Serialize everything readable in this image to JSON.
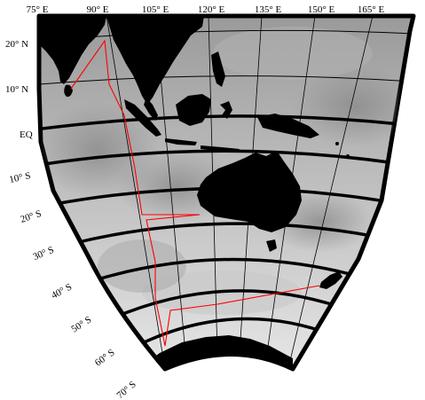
{
  "map": {
    "longitude_labels": [
      "75° E",
      "90° E",
      "105° E",
      "120° E",
      "135° E",
      "150° E",
      "165° E"
    ],
    "latitude_labels": [
      "20° N",
      "10° N",
      "EQ",
      "10° S",
      "20° S",
      "30° S",
      "40° S",
      "50° S",
      "60° S",
      "70° S"
    ],
    "projection": "conic",
    "extent": {
      "lon_min_deg": 75,
      "lon_max_deg": 170,
      "lat_min_deg": -70,
      "lat_max_deg": 25
    },
    "land_color": "#000000",
    "ocean_shading": "grayscale bathymetry",
    "graticule_color": "#000000",
    "track_color": "#ff0000"
  }
}
